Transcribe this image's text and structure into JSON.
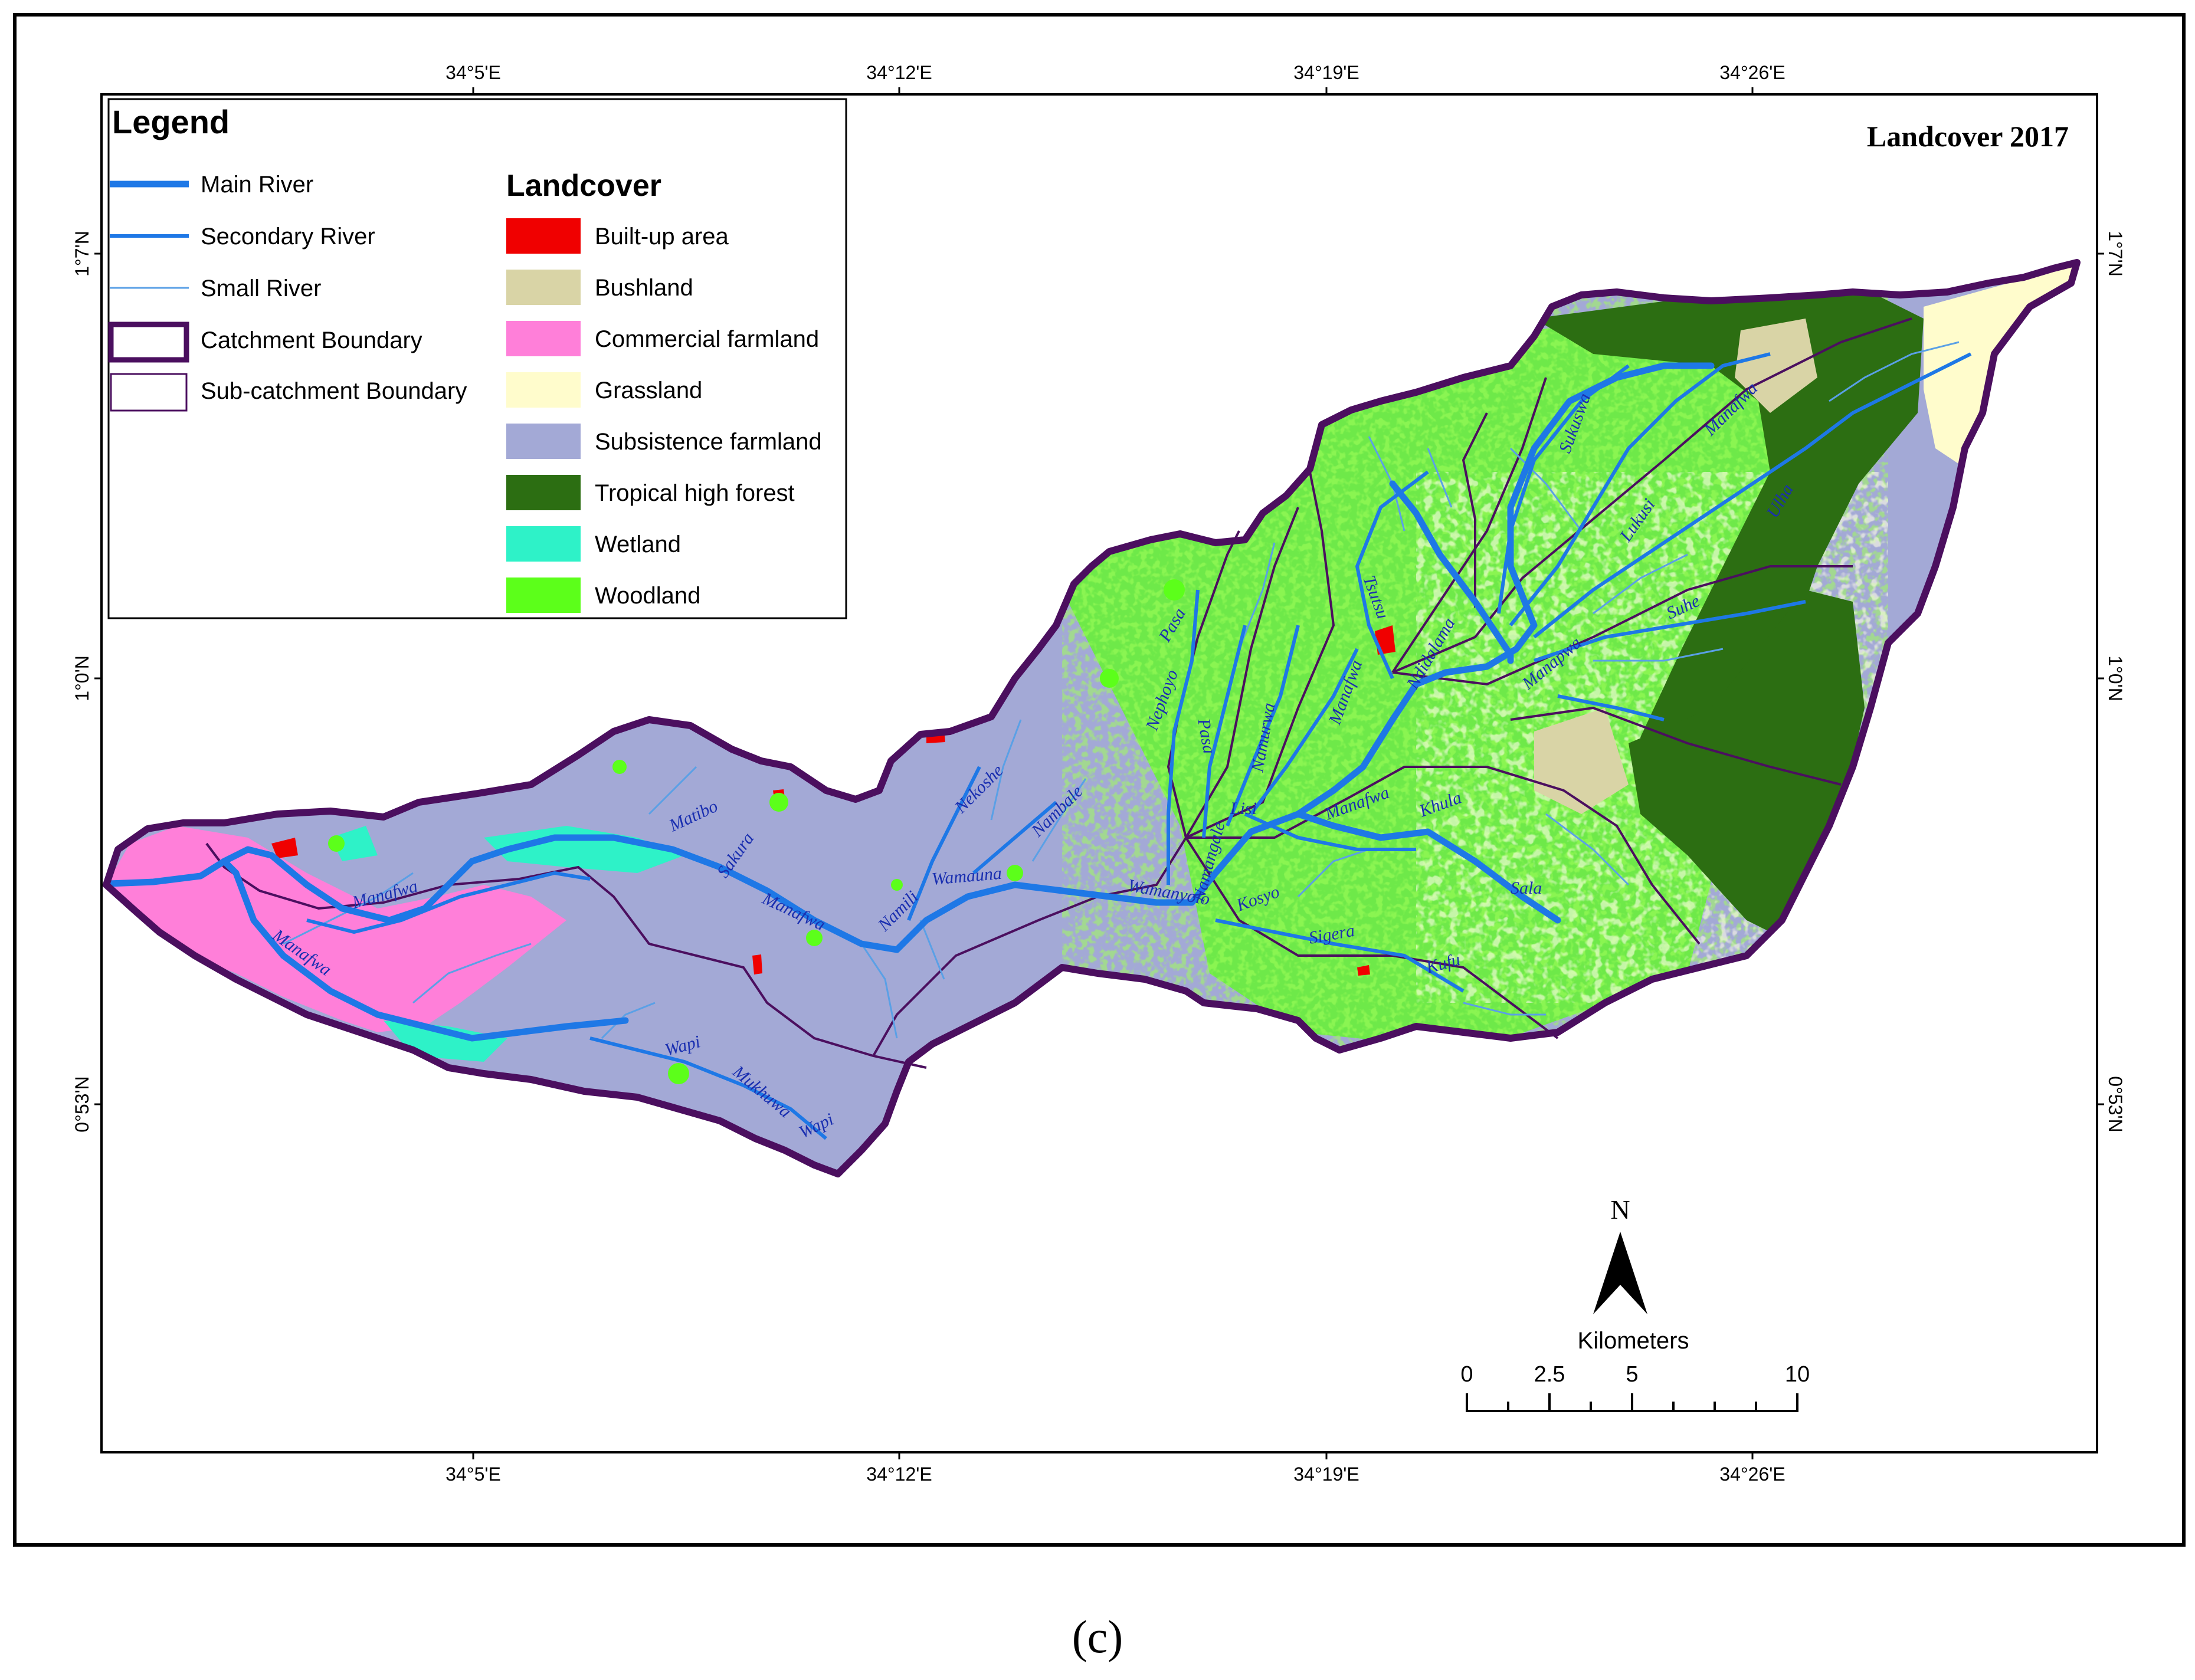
{
  "map_title": "Landcover 2017",
  "caption": "(c)",
  "graticule": {
    "top_labels": [
      "34°5'E",
      "34°12'E",
      "34°19'E",
      "34°26'E"
    ],
    "bottom_labels": [
      "34°5'E",
      "34°12'E",
      "34°19'E",
      "34°26'E"
    ],
    "left_labels": [
      "1°7'N",
      "1°0'N",
      "0°53'N"
    ],
    "right_labels": [
      "1°7'N",
      "1°0'N",
      "0°53'N"
    ]
  },
  "legend": {
    "title": "Legend",
    "line_items": [
      {
        "label": "Main River",
        "color": "#1e78e6"
      },
      {
        "label": "Secondary River",
        "color": "#1e78e6"
      },
      {
        "label": "Small River",
        "color": "#5aa0e6"
      },
      {
        "label": "Catchment Boundary",
        "color": "#4b0f5f"
      },
      {
        "label": "Sub-catchment Boundary",
        "color": "#4b0f5f"
      }
    ],
    "landcover_title": "Landcover",
    "landcover_items": [
      {
        "label": "Built-up area",
        "color": "#f00000"
      },
      {
        "label": "Bushland",
        "color": "#d9d4a6"
      },
      {
        "label": "Commercial farmland",
        "color": "#ff7fd9"
      },
      {
        "label": "Grassland",
        "color": "#fffccc"
      },
      {
        "label": "Subsistence farmland",
        "color": "#a3a9d6"
      },
      {
        "label": "Tropical high forest",
        "color": "#2c6e12"
      },
      {
        "label": "Wetland",
        "color": "#2ef2c8"
      },
      {
        "label": "Woodland",
        "color": "#5cff1a"
      }
    ]
  },
  "north_arrow": {
    "label": "N"
  },
  "scale_bar": {
    "units": "Kilometers",
    "ticks": [
      "0",
      "2.5",
      "5",
      "10"
    ]
  },
  "river_labels": [
    "Manafwa",
    "Manafwa",
    "Manafwa",
    "Manafwa",
    "Manafwa",
    "Manafwa",
    "Matibo",
    "Sakura",
    "Namili",
    "Wamauna",
    "Nekoshe",
    "Nambale",
    "Wamanyolo",
    "Namangale",
    "Lisi",
    "Namurwa",
    "Pasa",
    "Pasa",
    "Nephoyo",
    "Tsutsu",
    "Ndidalama",
    "Manapwa",
    "Khula",
    "Sala",
    "Sigera",
    "Kosyo",
    "Kufu",
    "Wapi",
    "Wapi",
    "Mukhuwa",
    "Sukuswa",
    "Lukusi",
    "Ulha",
    "Suhe"
  ]
}
